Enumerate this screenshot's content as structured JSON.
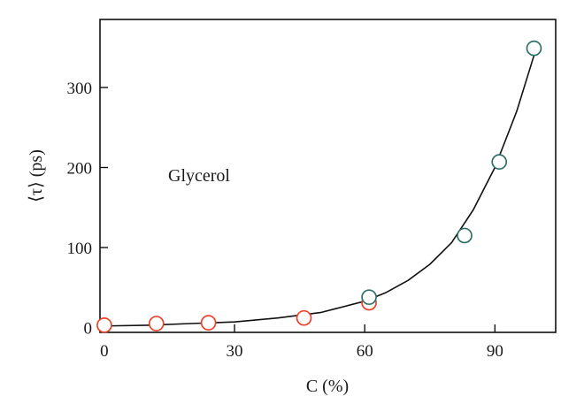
{
  "chart_data": {
    "type": "scatter",
    "title": "",
    "xlabel": "C (%)",
    "ylabel": "⟨τ⟩ (ps)",
    "xlim": [
      -1,
      104
    ],
    "ylim": [
      -6,
      385
    ],
    "xticks": [
      0,
      30,
      60,
      90
    ],
    "yticks": [
      0,
      100,
      200,
      300
    ],
    "grid": false,
    "legend": "none",
    "annotation": "Glycerol",
    "colors": {
      "red_series": "#e8432a",
      "teal_series": "#2e7068",
      "line": "#111111"
    },
    "series": [
      {
        "marker": "open-circle",
        "color": "#e8432a",
        "points": [
          {
            "x": 0,
            "y": 3
          },
          {
            "x": 12,
            "y": 5
          },
          {
            "x": 24,
            "y": 6
          },
          {
            "x": 46,
            "y": 12
          },
          {
            "x": 61,
            "y": 31
          }
        ]
      },
      {
        "marker": "open-circle",
        "color": "#2e7068",
        "points": [
          {
            "x": 61,
            "y": 38
          },
          {
            "x": 83,
            "y": 115
          },
          {
            "x": 91,
            "y": 207
          },
          {
            "x": 99,
            "y": 349
          }
        ]
      },
      {
        "type": "line",
        "color": "#111111",
        "points": [
          {
            "x": 0,
            "y": 2
          },
          {
            "x": 10,
            "y": 3
          },
          {
            "x": 20,
            "y": 5
          },
          {
            "x": 30,
            "y": 7
          },
          {
            "x": 40,
            "y": 12
          },
          {
            "x": 50,
            "y": 19
          },
          {
            "x": 60,
            "y": 33
          },
          {
            "x": 65,
            "y": 44
          },
          {
            "x": 70,
            "y": 59
          },
          {
            "x": 75,
            "y": 79
          },
          {
            "x": 80,
            "y": 106
          },
          {
            "x": 85,
            "y": 147
          },
          {
            "x": 90,
            "y": 200
          },
          {
            "x": 95,
            "y": 270
          },
          {
            "x": 99,
            "y": 340
          }
        ]
      }
    ]
  }
}
